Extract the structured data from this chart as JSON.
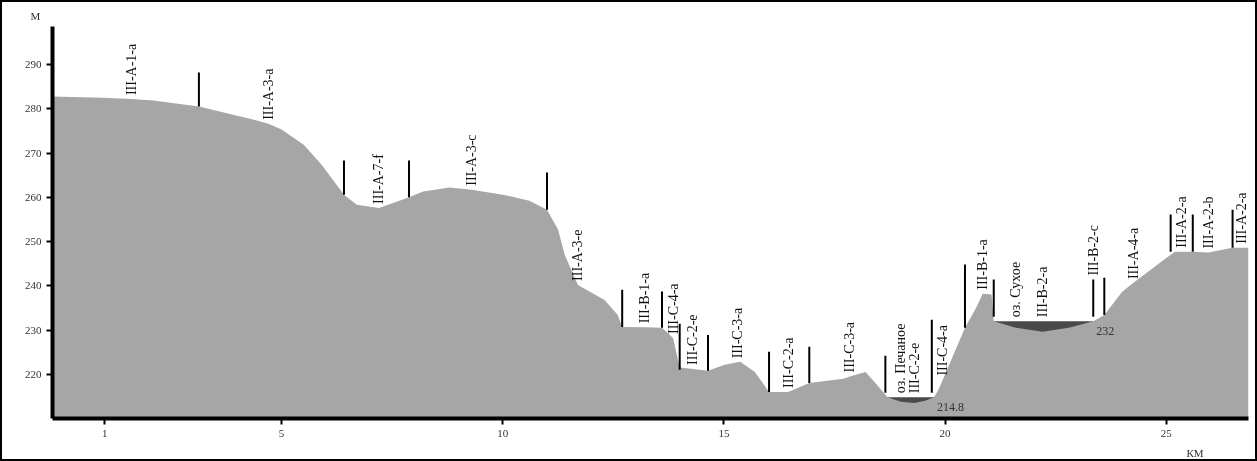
{
  "chart_data": {
    "type": "area",
    "xlabel": "КМ",
    "ylabel": "М",
    "xlim": [
      -0.18,
      26.86
    ],
    "ylim": [
      210,
      298.6
    ],
    "xticks": [
      1,
      5,
      10,
      15,
      20,
      25
    ],
    "yticks": [
      220,
      230,
      240,
      250,
      260,
      270,
      280,
      290
    ],
    "grid": false,
    "series": [
      {
        "color": "#a6a6a6",
        "x": [
          -0.18,
          0.95,
          1.6,
          2.1,
          3.13,
          4.35,
          4.7,
          5.0,
          5.5,
          5.9,
          6.41,
          6.7,
          7.2,
          7.6,
          7.88,
          8.2,
          8.8,
          9.3,
          10.0,
          10.6,
          11.0,
          11.25,
          11.4,
          11.7,
          12.3,
          12.6,
          12.7,
          13.2,
          13.6,
          13.85,
          14.0,
          14.3,
          14.64,
          15.0,
          15.3,
          15.37,
          15.7,
          16.02,
          16.45,
          16.93,
          17.7,
          17.85,
          18.2,
          18.4,
          18.7,
          19.0,
          19.3,
          19.55,
          19.75,
          19.85,
          19.95,
          20.45,
          20.7,
          20.85,
          21.05,
          21.1,
          21.6,
          22.2,
          22.8,
          23.35,
          23.48,
          23.6,
          24.0,
          24.25,
          24.5,
          25.0,
          25.2,
          25.35,
          25.6,
          25.95,
          26.5,
          26.7,
          26.86
        ],
        "values": [
          282.8,
          282.5,
          282.2,
          281.9,
          280.5,
          277.6,
          276.6,
          275.3,
          271.9,
          267.4,
          260.6,
          258.3,
          257.6,
          259.0,
          260.0,
          261.3,
          262.2,
          261.7,
          260.6,
          259.2,
          257.2,
          252.7,
          247.0,
          240.2,
          236.8,
          233.4,
          230.7,
          230.6,
          230.5,
          228.2,
          221.5,
          221.2,
          220.8,
          222.1,
          222.7,
          222.8,
          220.5,
          216.0,
          216.0,
          218.0,
          219.0,
          219.5,
          220.5,
          218.3,
          214.8,
          213.8,
          213.5,
          214.0,
          214.8,
          216.5,
          218.8,
          230.5,
          235.0,
          238.2,
          238.0,
          232.0,
          230.5,
          229.6,
          230.5,
          232.0,
          232.7,
          233.4,
          238.6,
          240.6,
          242.5,
          246.3,
          247.7,
          247.7,
          247.7,
          247.5,
          248.6,
          248.6,
          248.6
        ]
      },
      {
        "type": "area",
        "color": "#4a4a4a",
        "x": [
          18.7,
          19.0,
          19.3,
          19.55,
          19.75
        ],
        "values": [
          214.8,
          214.8,
          214.8,
          214.8,
          214.8
        ],
        "value_labels": [
          null,
          null,
          null,
          null,
          "214.8"
        ]
      },
      {
        "type": "area",
        "color": "#4a4a4a",
        "x": [
          21.1,
          21.6,
          22.2,
          22.8,
          23.35
        ],
        "values": [
          232,
          232,
          232,
          232,
          232
        ],
        "value_labels": [
          null,
          null,
          null,
          null,
          "232"
        ]
      },
      {
        "type": "bar",
        "color": "#000000",
        "x": [
          3.13,
          6.41,
          7.88,
          11.0,
          12.7,
          13.6,
          14.0,
          14.64,
          16.02,
          16.93,
          18.65,
          19.7,
          20.45,
          21.1,
          23.35,
          23.6,
          25.1,
          25.6,
          26.5
        ],
        "base": [
          280.5,
          260.6,
          260.0,
          257.2,
          230.7,
          230.5,
          221.0,
          220.8,
          216.0,
          218.0,
          215.8,
          215.8,
          230.5,
          233.0,
          233.0,
          233.4,
          247.7,
          247.7,
          248.6
        ],
        "values": [
          7.7,
          7.7,
          8.3,
          8.4,
          8.4,
          8.2,
          10.4,
          8.1,
          9.1,
          8.2,
          8.4,
          16.5,
          14.3,
          8.4,
          8.4,
          8.4,
          8.4,
          8.4,
          8.6
        ]
      }
    ],
    "annotations": [
      {
        "text": "III-A-1-a",
        "x": 1.6,
        "y": 282.2
      },
      {
        "text": "III-A-3-a",
        "x": 4.7,
        "y": 276.6
      },
      {
        "text": "III-A-7-f",
        "x": 7.2,
        "y": 257.6
      },
      {
        "text": "III-A-3-c",
        "x": 9.3,
        "y": 261.7
      },
      {
        "text": "III-A-3-e",
        "x": 11.7,
        "y": 240.2
      },
      {
        "text": "III-B-1-a",
        "x": 13.2,
        "y": 230.6
      },
      {
        "text": "III-C-4-a",
        "x": 13.85,
        "y": 228.2
      },
      {
        "text": "III-C-2-e",
        "x": 14.3,
        "y": 221.2
      },
      {
        "text": "III-C-3-a",
        "x": 15.3,
        "y": 222.7
      },
      {
        "text": "III-C-2-a",
        "x": 16.45,
        "y": 216.0
      },
      {
        "text": "III-C-3-a",
        "x": 17.85,
        "y": 219.5
      },
      {
        "text": "оз. Печаное",
        "x": 19.0,
        "y": 214.8
      },
      {
        "text": "III-C-2-e",
        "x": 19.3,
        "y": 214.8
      },
      {
        "text": "III-C-4-a",
        "x": 19.95,
        "y": 218.8
      },
      {
        "text": "III-B-1-a",
        "x": 20.85,
        "y": 238.2
      },
      {
        "text": "оз. Сухое",
        "x": 21.6,
        "y": 232
      },
      {
        "text": "III-B-2-a",
        "x": 22.2,
        "y": 232
      },
      {
        "text": "III-B-2-c",
        "x": 23.35,
        "y": 241.4
      },
      {
        "text": "III-A-4-a",
        "x": 24.25,
        "y": 240.6
      },
      {
        "text": "III-A-2-a",
        "x": 25.35,
        "y": 247.7
      },
      {
        "text": "III-A-2-b",
        "x": 25.95,
        "y": 247.5
      },
      {
        "text": "III-A-2-a",
        "x": 26.7,
        "y": 248.6
      }
    ]
  }
}
